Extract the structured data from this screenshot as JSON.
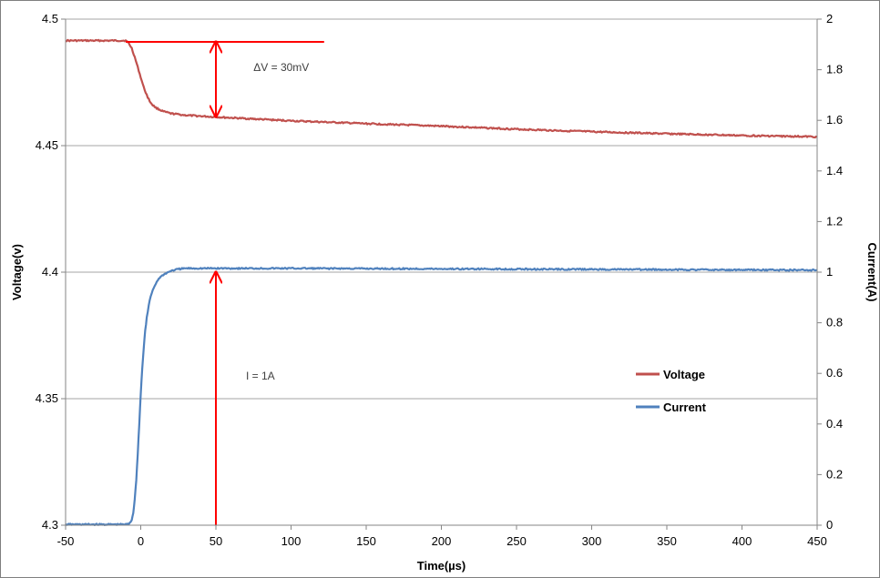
{
  "chart_data": {
    "type": "line",
    "title": "",
    "xlabel": "Time(µs)",
    "ylabel_left": "Voltage(v)",
    "ylabel_right": "Current(A)",
    "xlim": [
      -50,
      450
    ],
    "ylim_left": [
      4.3,
      4.5
    ],
    "ylim_right": [
      0,
      2
    ],
    "x_ticks": [
      "-50",
      "0",
      "50",
      "100",
      "150",
      "200",
      "250",
      "300",
      "350",
      "400",
      "450"
    ],
    "y_left_ticks": [
      "4.3",
      "4.35",
      "4.4",
      "4.45",
      "4.5"
    ],
    "y_right_ticks": [
      "0",
      "0.2",
      "0.4",
      "0.6",
      "0.8",
      "1",
      "1.2",
      "1.4",
      "1.6",
      "1.8",
      "2"
    ],
    "grid": "horizontal",
    "legend_position": "right",
    "series": [
      {
        "name": "Voltage",
        "axis": "left",
        "color": "#c0504d",
        "x": [
          -50,
          -30,
          -10,
          -8,
          -6,
          -4,
          -2,
          0,
          2,
          4,
          6,
          8,
          10,
          15,
          20,
          30,
          50,
          100,
          150,
          200,
          250,
          300,
          350,
          400,
          450
        ],
        "y": [
          4.4915,
          4.4915,
          4.4915,
          4.4905,
          4.4885,
          4.485,
          4.481,
          4.477,
          4.473,
          4.47,
          4.4675,
          4.466,
          4.465,
          4.4635,
          4.4627,
          4.462,
          4.4613,
          4.4598,
          4.4587,
          4.4577,
          4.4565,
          4.4555,
          4.4547,
          4.454,
          4.4535
        ]
      },
      {
        "name": "Current",
        "axis": "right",
        "color": "#4f81bd",
        "x": [
          -50,
          -20,
          -10,
          -8,
          -6,
          -5,
          -4,
          -3,
          -2,
          -1,
          0,
          1,
          2,
          3,
          4,
          6,
          8,
          10,
          12,
          15,
          20,
          25,
          30,
          50,
          100,
          200,
          300,
          400,
          450
        ],
        "y": [
          0.003,
          0.003,
          0.003,
          0.005,
          0.02,
          0.05,
          0.1,
          0.18,
          0.28,
          0.4,
          0.52,
          0.62,
          0.7,
          0.77,
          0.82,
          0.89,
          0.93,
          0.955,
          0.975,
          0.99,
          1.005,
          1.012,
          1.015,
          1.015,
          1.015,
          1.013,
          1.011,
          1.009,
          1.008
        ]
      }
    ],
    "annotations": [
      {
        "text": "ΔV = 30mV",
        "color": "#ff0000",
        "kind": "double-arrow",
        "x": 50,
        "y_from": 4.4615,
        "y_to": 4.491,
        "ref_line_x": [
          -10,
          122
        ],
        "ref_line_y": 4.491,
        "label_x": 75,
        "label_y": 4.4795
      },
      {
        "text": "I = 1A",
        "color": "#ff0000",
        "kind": "arrow",
        "x": 50,
        "y_from": 4.3,
        "y_to": 4.4,
        "label_x": 70,
        "label_y": 4.3575
      }
    ]
  }
}
